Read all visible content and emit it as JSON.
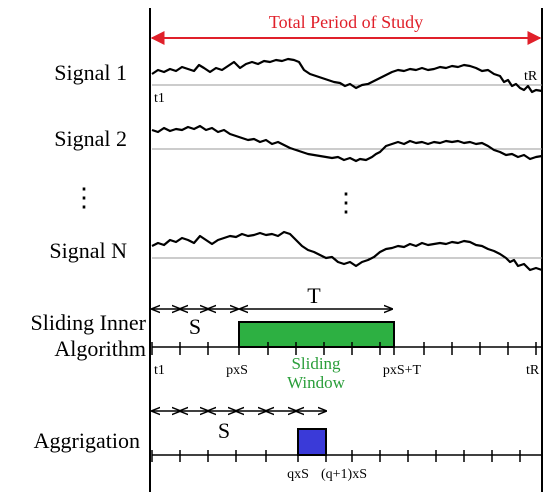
{
  "header": {
    "title": "Total Period of Study"
  },
  "colors": {
    "header": "#e0202a",
    "window_fill": "#2db042",
    "window_text": "#2a9e3a",
    "aggregation_fill": "#3a3ad8",
    "baseline": "#9a9a9a",
    "ink": "#000000"
  },
  "signals": [
    {
      "label": "Signal 1",
      "start_label": "t1",
      "end_label": "tR"
    },
    {
      "label": "Signal 2"
    },
    {
      "label": "Signal N"
    }
  ],
  "ellipsis": {
    "left": "⋮",
    "middle": "⋮"
  },
  "sliding": {
    "label_line1": "Sliding Inner",
    "label_line2": "Algorithm",
    "step_label": "S",
    "window_length_label": "T",
    "window_label_line1": "Sliding",
    "window_label_line2": "Window",
    "tick_t1": "t1",
    "tick_start": "pxS",
    "tick_end": "pxS+T",
    "tick_tr": "tR"
  },
  "aggregation": {
    "label": "Aggrigation",
    "step_label": "S",
    "tick_start": "qxS",
    "tick_end": "(q+1)xS"
  }
}
